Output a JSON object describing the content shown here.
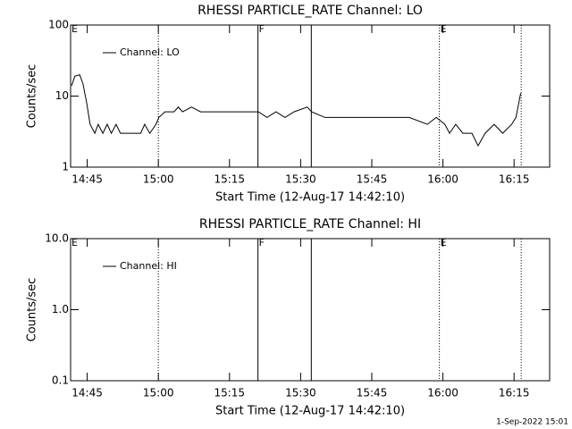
{
  "chart_data": [
    {
      "type": "line",
      "title": "RHESSI PARTICLE_RATE Channel: LO",
      "xlabel": "Start Time (12-Aug-17 14:42:10)",
      "ylabel": "Counts/sec",
      "xlim": [
        881.5,
        982.5
      ],
      "xticks": [
        {
          "value": 885,
          "label": "14:45"
        },
        {
          "value": 900,
          "label": "15:00"
        },
        {
          "value": 915,
          "label": "15:15"
        },
        {
          "value": 930,
          "label": "15:30"
        },
        {
          "value": 945,
          "label": "15:45"
        },
        {
          "value": 960,
          "label": "16:00"
        },
        {
          "value": 975,
          "label": "16:15"
        }
      ],
      "ylim": [
        1,
        100
      ],
      "yticks": [
        1,
        10,
        100
      ],
      "ylog": true,
      "legend": "top-left",
      "x": [
        881.7,
        882.4,
        883.4,
        884.1,
        884.9,
        885.6,
        886.6,
        887.3,
        888.3,
        889.2,
        890.1,
        891.1,
        892.0,
        892.9,
        894.8,
        896.3,
        897.1,
        898.2,
        899.5,
        900.1,
        901.4,
        903.3,
        904.2,
        905.1,
        907.0,
        908.9,
        911.7,
        915.4,
        921.1,
        922.9,
        924.8,
        926.7,
        928.6,
        931.4,
        932.3,
        935.1,
        941.7,
        947.3,
        952.9,
        956.7,
        958.6,
        960.4,
        961.4,
        962.7,
        964.2,
        966.1,
        967.4,
        968.9,
        970.8,
        972.6,
        974.5,
        975.4,
        976.4
      ],
      "series": [
        {
          "name": "Channel: LO",
          "color": "#000000",
          "values": [
            14,
            19,
            20,
            15,
            8,
            4,
            3,
            4,
            3,
            4,
            3,
            4,
            3,
            3,
            3,
            3,
            4,
            3,
            4,
            5,
            6,
            6,
            7,
            6,
            7,
            6,
            6,
            6,
            6,
            5,
            6,
            5,
            6,
            7,
            6,
            5,
            5,
            5,
            5,
            4,
            5,
            4,
            3,
            4,
            3,
            3,
            2,
            3,
            4,
            3,
            4,
            5,
            11
          ]
        }
      ],
      "markers": [
        {
          "x": 881.5,
          "style": "dotted",
          "label": "E"
        },
        {
          "x": 900,
          "style": "dotted"
        },
        {
          "x": 921,
          "style": "solid",
          "label": "F"
        },
        {
          "x": 932.25,
          "style": "solid"
        },
        {
          "x": 959.25,
          "style": "dotted",
          "label": "E"
        },
        {
          "x": 976.5,
          "style": "dotted"
        }
      ]
    },
    {
      "type": "line",
      "title": "RHESSI PARTICLE_RATE Channel: HI",
      "xlabel": "Start Time (12-Aug-17 14:42:10)",
      "ylabel": "Counts/sec",
      "xlim": [
        881.5,
        982.5
      ],
      "xticks": [
        {
          "value": 885,
          "label": "14:45"
        },
        {
          "value": 900,
          "label": "15:00"
        },
        {
          "value": 915,
          "label": "15:15"
        },
        {
          "value": 930,
          "label": "15:30"
        },
        {
          "value": 945,
          "label": "15:45"
        },
        {
          "value": 960,
          "label": "16:00"
        },
        {
          "value": 975,
          "label": "16:15"
        }
      ],
      "ylim": [
        0.1,
        10
      ],
      "yticks": [
        0.1,
        {
          "value": 1,
          "label": "1.0"
        },
        {
          "value": 10,
          "label": "10.0"
        }
      ],
      "ylog": true,
      "legend": "top-left",
      "x": [],
      "series": [
        {
          "name": "Channel: HI",
          "color": "#000000",
          "values": []
        }
      ],
      "markers": [
        {
          "x": 881.5,
          "style": "dotted",
          "label": "E"
        },
        {
          "x": 900,
          "style": "dotted"
        },
        {
          "x": 921,
          "style": "solid",
          "label": "F"
        },
        {
          "x": 932.25,
          "style": "solid"
        },
        {
          "x": 959.25,
          "style": "dotted",
          "label": "E"
        },
        {
          "x": 976.5,
          "style": "dotted"
        }
      ]
    }
  ],
  "footer": "1-Sep-2022 15:01"
}
